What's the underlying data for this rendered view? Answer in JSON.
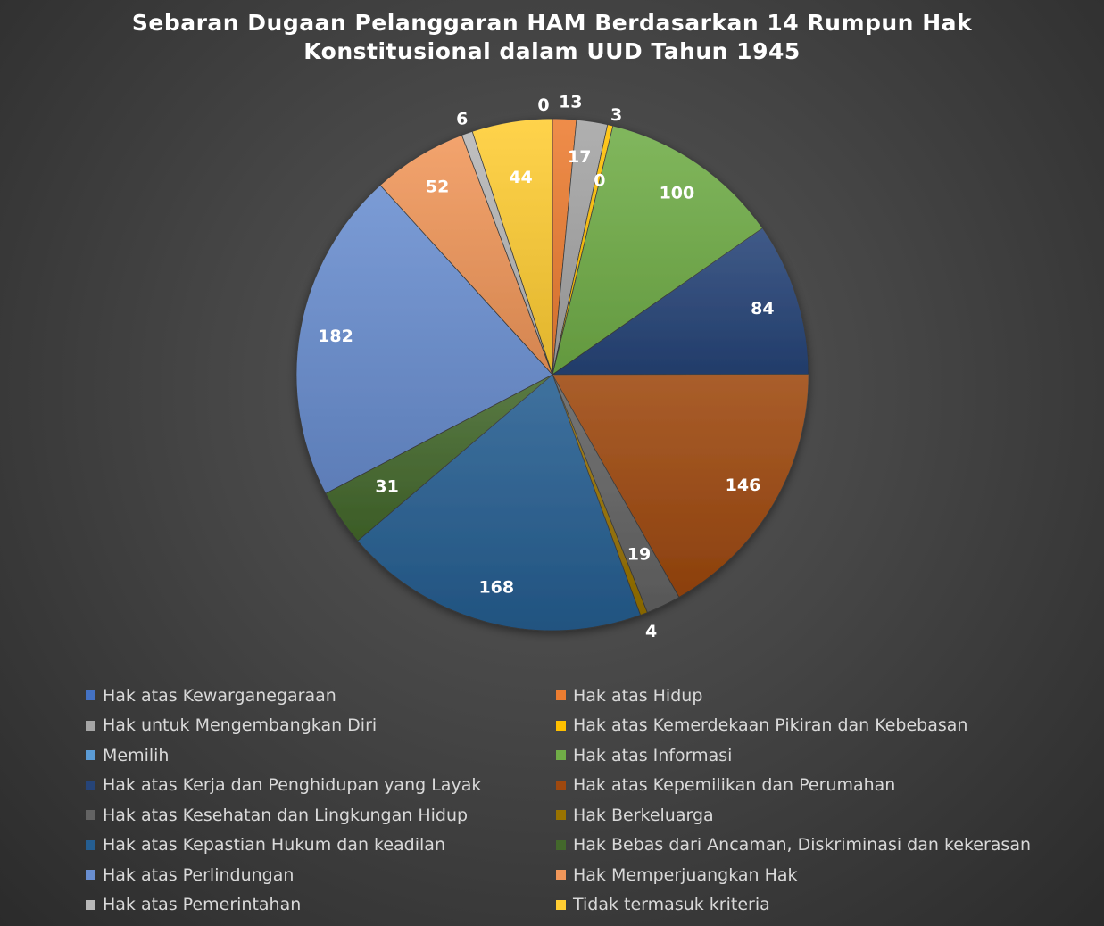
{
  "chart_data": {
    "type": "pie",
    "title_lines": [
      "Sebaran Dugaan Pelanggaran HAM Berdasarkan 14 Rumpun Hak",
      "Konstitusional dalam UUD Tahun 1945"
    ],
    "legend_position": "bottom",
    "slices": [
      {
        "label": "Hak atas Kewarganegaraan",
        "value": 0,
        "color": "#4472c4"
      },
      {
        "label": "Hak atas Hidup",
        "value": 13,
        "color": "#ed7d31"
      },
      {
        "label": "Hak untuk Mengembangkan Diri",
        "value": 17,
        "color": "#a5a5a5"
      },
      {
        "label": "Hak atas Kemerdekaan Pikiran dan Kebebasan",
        "value": 3,
        "color": "#ffc000"
      },
      {
        "label": "Memilih",
        "value": 0,
        "color": "#5b9bd5"
      },
      {
        "label": "Hak atas Informasi",
        "value": 100,
        "color": "#70ad47"
      },
      {
        "label": "Hak atas Kerja dan Penghidupan yang Layak",
        "value": 84,
        "color": "#264478"
      },
      {
        "label": "Hak atas Kepemilikan dan Perumahan",
        "value": 146,
        "color": "#9e480e"
      },
      {
        "label": "Hak atas Kesehatan dan Lingkungan Hidup",
        "value": 19,
        "color": "#636363"
      },
      {
        "label": "Hak Berkeluarga",
        "value": 4,
        "color": "#997300"
      },
      {
        "label": "Hak atas Kepastian Hukum dan keadilan",
        "value": 168,
        "color": "#255e91"
      },
      {
        "label": "Hak Bebas dari Ancaman, Diskriminasi dan kekerasan",
        "value": 31,
        "color": "#43682b"
      },
      {
        "label": "Hak atas Perlindungan",
        "value": 182,
        "color": "#698ed0"
      },
      {
        "label": "Hak Memperjuangkan Hak",
        "value": 52,
        "color": "#f1975a"
      },
      {
        "label": "Hak atas Pemerintahan",
        "value": 6,
        "color": "#b7b7b7"
      },
      {
        "label": "Tidak termasuk kriteria",
        "value": 44,
        "color": "#ffcd33"
      }
    ]
  }
}
